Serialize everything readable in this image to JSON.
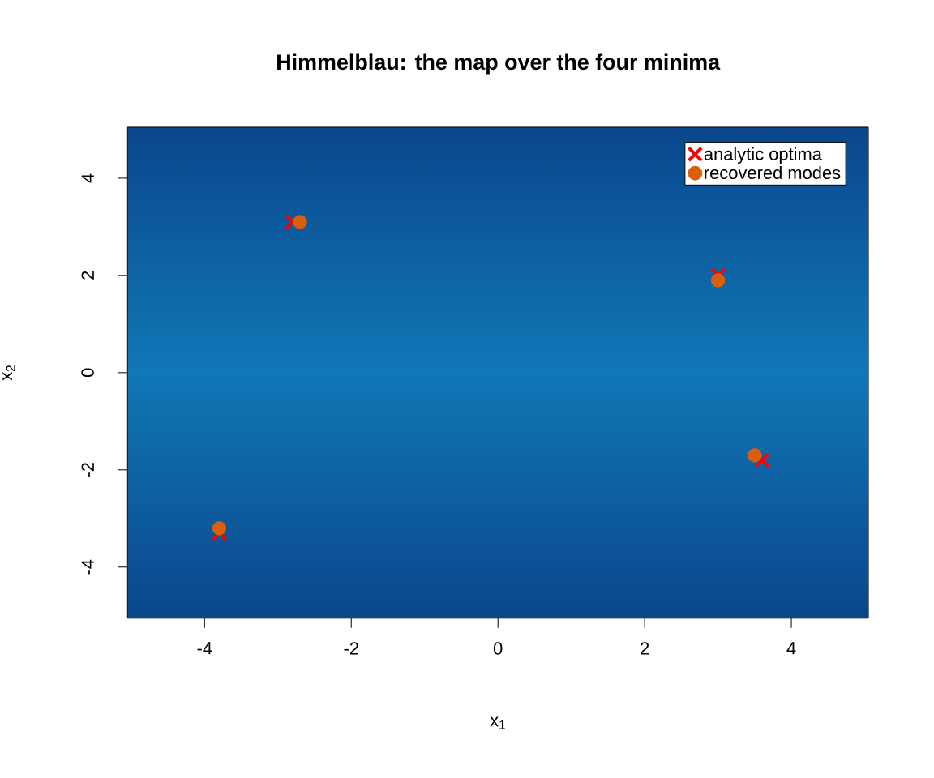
{
  "chart_data": {
    "type": "scatter",
    "title": "Himmelblau: the map over the four minima",
    "xlabel": "x$_{1}$",
    "ylabel": "x$_{2}$",
    "xlim": [
      -5.05,
      5.05
    ],
    "ylim": [
      -5.05,
      5.05
    ],
    "xticks": [
      -4,
      -2,
      0,
      2,
      4
    ],
    "yticks": [
      -4,
      -2,
      0,
      2,
      4
    ],
    "legend": "top right",
    "series": [
      {
        "name": "analytic optima",
        "color": "#ff0000",
        "marker": "cross",
        "x": [
          -2.8,
          3.0,
          3.6,
          -3.8
        ],
        "values": [
          3.1,
          2.0,
          -1.8,
          -3.3
        ]
      },
      {
        "name": "recovered modes",
        "color": "#d95f0e",
        "marker": "circle",
        "x": [
          -2.7,
          3.0,
          3.5,
          -3.8
        ],
        "values": [
          3.1,
          1.9,
          -1.7,
          -3.2
        ]
      }
    ]
  }
}
